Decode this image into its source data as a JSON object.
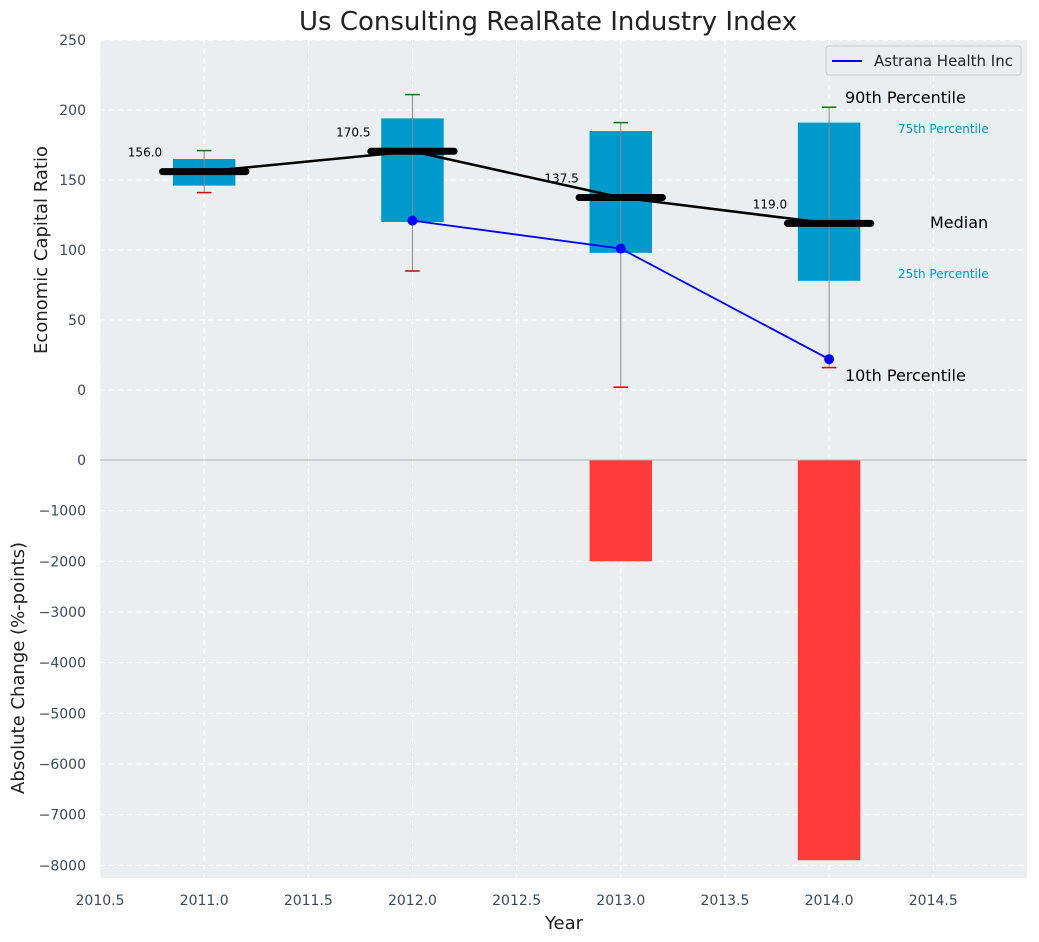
{
  "chart_data": [
    {
      "type": "box",
      "title": "Us Consulting RealRate Industry Index",
      "ylabel": "Economic Capital Ratio",
      "xlim": [
        2010.5,
        2014.95
      ],
      "ylim": [
        -50,
        250
      ],
      "xticks": [
        "2010.5",
        "2011.0",
        "2011.5",
        "2012.0",
        "2012.5",
        "2013.0",
        "2013.5",
        "2014.0",
        "2014.5"
      ],
      "yticks": [
        "0",
        "50",
        "100",
        "150",
        "200",
        "250"
      ],
      "boxes": [
        {
          "x": 2011,
          "p10": 141,
          "p25": 146,
          "median": 156.0,
          "p75": 165,
          "p90": 171,
          "median_label": "156.0"
        },
        {
          "x": 2012,
          "p10": 85,
          "p25": 120,
          "median": 170.5,
          "p75": 194,
          "p90": 211,
          "median_label": "170.5"
        },
        {
          "x": 2013,
          "p10": 2,
          "p25": 98,
          "median": 137.5,
          "p75": 185,
          "p90": 191,
          "median_label": "137.5"
        },
        {
          "x": 2014,
          "p10": 16,
          "p25": 78,
          "median": 119.0,
          "p75": 191,
          "p90": 202,
          "median_label": "119.0"
        }
      ],
      "company_series": {
        "name": "Astrana Health Inc",
        "x": [
          2012,
          2013,
          2014
        ],
        "y": [
          121,
          101,
          22
        ]
      },
      "legend_label": "Astrana Health Inc",
      "legend_position": "top-right",
      "percentile_labels": {
        "p90": "90th Percentile",
        "p75": "75th Percentile",
        "median": "Median",
        "p25": "25th Percentile",
        "p10": "10th Percentile"
      },
      "grid": true
    },
    {
      "type": "bar",
      "ylabel": "Absolute Change (%-points)",
      "xlabel": "Year",
      "ylim": [
        -8250,
        0
      ],
      "yticks": [
        "0",
        "−1000",
        "−2000",
        "−3000",
        "−4000",
        "−5000",
        "−6000",
        "−7000",
        "−8000"
      ],
      "x": [
        2011,
        2012,
        2013,
        2014
      ],
      "values": [
        0,
        0,
        -2000,
        -7900
      ],
      "grid": true
    }
  ],
  "colors": {
    "plot_bg": "#eaeef0",
    "box_fill": "#0099cc",
    "whisker": "#8a8a8a",
    "p90_cap": "#008000",
    "p10_cap": "#e00000",
    "median_line": "#000000",
    "company_line": "#0000ff",
    "neg_bar": "#ff3b3b",
    "tick_text": "#3a4a5a",
    "label_p75_p25": "#0099cc"
  }
}
